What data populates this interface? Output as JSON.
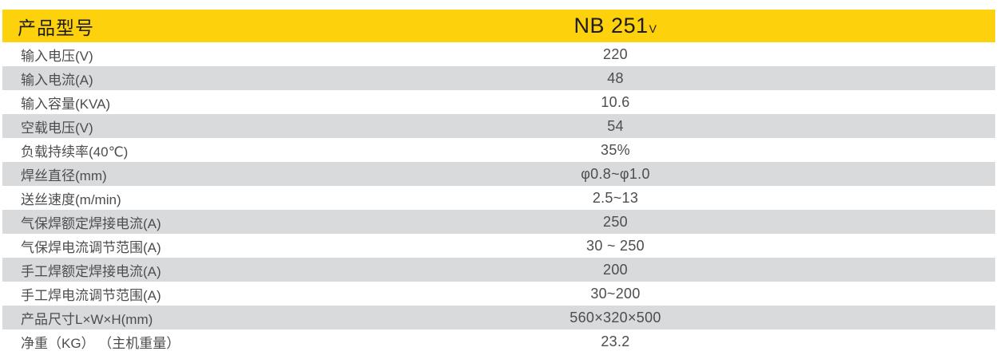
{
  "colors": {
    "header_accent": "#FDD10C",
    "row_alternate": "#D8DADC",
    "header_text": "#1c1c1c",
    "body_text": "#4c4d4f"
  },
  "table": {
    "header": {
      "label": "产品型号",
      "model": "NB 251",
      "model_suffix": "V"
    },
    "rows": [
      {
        "label": "输入电压(V)",
        "value": "220"
      },
      {
        "label": "输入电流(A)",
        "value": "48"
      },
      {
        "label": "输入容量(KVA)",
        "value": "10.6"
      },
      {
        "label": "空载电压(V)",
        "value": "54"
      },
      {
        "label": "负载持续率(40℃)",
        "value": "35%"
      },
      {
        "label": "焊丝直径(mm)",
        "value": "φ0.8~φ1.0"
      },
      {
        "label": "送丝速度(m/min)",
        "value": "2.5~13"
      },
      {
        "label": "气保焊额定焊接电流(A)",
        "value": "250"
      },
      {
        "label": "气保焊电流调节范围(A)",
        "value": "30 ~ 250"
      },
      {
        "label": "手工焊额定焊接电流(A)",
        "value": "200"
      },
      {
        "label": "手工焊电流调节范围(A)",
        "value": "30~200"
      },
      {
        "label": "产品尺寸L×W×H(mm)",
        "value": "560×320×500"
      },
      {
        "label": "净重（KG） （主机重量）",
        "value": "23.2"
      }
    ]
  }
}
